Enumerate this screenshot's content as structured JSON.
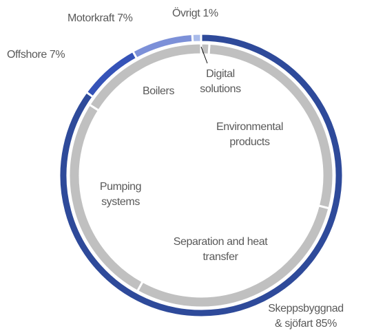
{
  "chart_data": {
    "type": "donut",
    "rings": [
      {
        "categories": [
          "Skeppsbyggnad & sjöfart",
          "Offshore",
          "Motorkraft",
          "Övrigt"
        ],
        "values": [
          85,
          7,
          7,
          1
        ],
        "value_labels": [
          "85%",
          "7%",
          "7%",
          "1%"
        ],
        "colors": [
          "#2e4a9a",
          "#3553b8",
          "#7c90d8",
          "#a9bbea"
        ]
      },
      {
        "categories": [
          "Digital solutions",
          "Environmental products",
          "Separation and heat transfer",
          "Pumping systems",
          "Boilers"
        ],
        "values": [
          1,
          28,
          29,
          26,
          16
        ],
        "color": "#c0c0c0"
      }
    ]
  }
}
